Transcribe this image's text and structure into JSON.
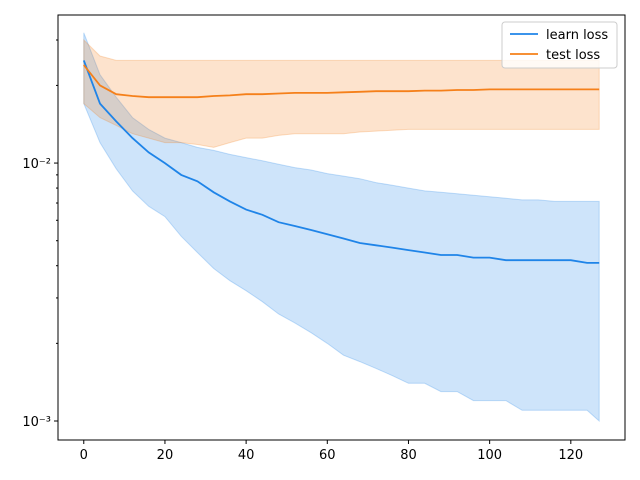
{
  "chart_data": {
    "type": "line",
    "log_y": true,
    "legend": "upper right",
    "x": [
      0,
      4,
      8,
      12,
      16,
      20,
      24,
      28,
      32,
      36,
      40,
      44,
      48,
      52,
      56,
      60,
      64,
      68,
      72,
      76,
      80,
      84,
      88,
      92,
      96,
      100,
      104,
      108,
      112,
      116,
      120,
      124,
      127
    ],
    "series": [
      {
        "name": "learn loss",
        "color": "#1f84e8",
        "values": [
          0.025,
          0.017,
          0.0145,
          0.0125,
          0.011,
          0.01,
          0.009,
          0.0085,
          0.0077,
          0.0071,
          0.0066,
          0.0063,
          0.0059,
          0.0057,
          0.0055,
          0.0053,
          0.0051,
          0.0049,
          0.0048,
          0.0047,
          0.0046,
          0.0045,
          0.0044,
          0.0044,
          0.0043,
          0.0043,
          0.0042,
          0.0042,
          0.0042,
          0.0042,
          0.0042,
          0.0041,
          0.0041
        ],
        "upper": [
          0.032,
          0.022,
          0.018,
          0.015,
          0.0135,
          0.0125,
          0.012,
          0.0115,
          0.0112,
          0.0108,
          0.0105,
          0.0102,
          0.0099,
          0.0096,
          0.0094,
          0.0091,
          0.0089,
          0.0087,
          0.0084,
          0.0082,
          0.008,
          0.0078,
          0.0077,
          0.0076,
          0.0075,
          0.0074,
          0.0073,
          0.0072,
          0.0072,
          0.0071,
          0.0071,
          0.0071,
          0.0071
        ],
        "lower": [
          0.017,
          0.012,
          0.0095,
          0.0078,
          0.0068,
          0.0062,
          0.0052,
          0.0045,
          0.0039,
          0.0035,
          0.0032,
          0.0029,
          0.0026,
          0.0024,
          0.0022,
          0.002,
          0.0018,
          0.0017,
          0.0016,
          0.0015,
          0.0014,
          0.0014,
          0.0013,
          0.0013,
          0.0012,
          0.0012,
          0.0012,
          0.0011,
          0.0011,
          0.0011,
          0.0011,
          0.0011,
          0.001
        ]
      },
      {
        "name": "test loss",
        "color": "#f5801a",
        "values": [
          0.024,
          0.02,
          0.0185,
          0.0182,
          0.018,
          0.018,
          0.018,
          0.018,
          0.0182,
          0.0183,
          0.0185,
          0.0185,
          0.0186,
          0.0187,
          0.0187,
          0.0187,
          0.0188,
          0.0189,
          0.019,
          0.019,
          0.019,
          0.0191,
          0.0191,
          0.0192,
          0.0192,
          0.0193,
          0.0193,
          0.0193,
          0.0193,
          0.0193,
          0.0193,
          0.0193,
          0.0193
        ],
        "upper": [
          0.03,
          0.026,
          0.025,
          0.025,
          0.025,
          0.025,
          0.025,
          0.025,
          0.025,
          0.025,
          0.025,
          0.025,
          0.025,
          0.025,
          0.025,
          0.025,
          0.025,
          0.025,
          0.025,
          0.025,
          0.025,
          0.025,
          0.025,
          0.025,
          0.025,
          0.025,
          0.025,
          0.025,
          0.025,
          0.025,
          0.025,
          0.025,
          0.025
        ],
        "lower": [
          0.017,
          0.015,
          0.014,
          0.013,
          0.0125,
          0.012,
          0.012,
          0.0118,
          0.0115,
          0.012,
          0.0125,
          0.0125,
          0.0128,
          0.013,
          0.013,
          0.013,
          0.013,
          0.0132,
          0.0133,
          0.0134,
          0.0135,
          0.0135,
          0.0135,
          0.0135,
          0.0135,
          0.0135,
          0.0135,
          0.0135,
          0.0135,
          0.0135,
          0.0135,
          0.0135,
          0.0135
        ]
      }
    ],
    "xlim": [
      -6.35,
      133.35
    ],
    "xticks": [
      0,
      20,
      40,
      60,
      80,
      100,
      120
    ],
    "ylim": [
      0.000844,
      0.0375
    ],
    "yticks": [
      {
        "value": 0.001,
        "label": "10⁻³"
      },
      {
        "value": 0.01,
        "label": "10⁻²"
      }
    ],
    "yminorticks": [
      0.002,
      0.003,
      0.004,
      0.005,
      0.006,
      0.007,
      0.008,
      0.009,
      0.02,
      0.03
    ]
  }
}
